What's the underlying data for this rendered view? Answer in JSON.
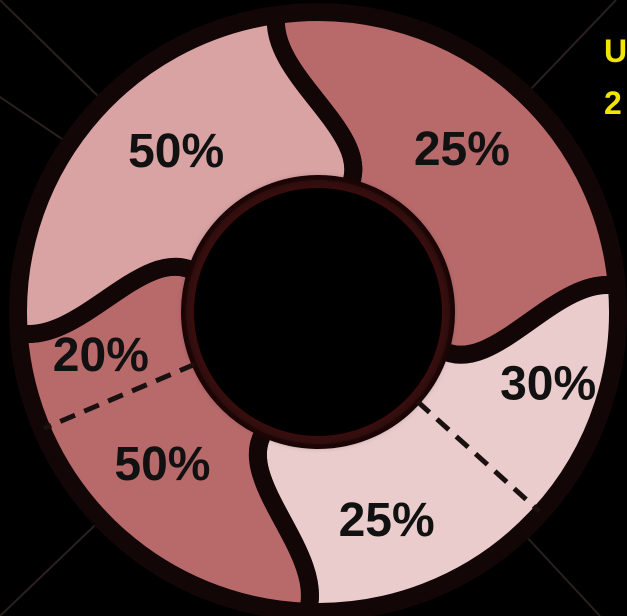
{
  "chart_data": {
    "type": "donut",
    "title": "",
    "segments": [
      {
        "name": "",
        "color": "#b86a6b",
        "parts": [
          {
            "label": "25%",
            "value": 25
          }
        ]
      },
      {
        "name": "",
        "color": "#eacccc",
        "parts": [
          {
            "label": "30%",
            "value": 30
          },
          {
            "label": "25%",
            "value": 25
          }
        ]
      },
      {
        "name": "",
        "color": "#b86a6b",
        "parts": [
          {
            "label": "50%",
            "value": 50
          },
          {
            "label": "20%",
            "value": 20
          }
        ]
      },
      {
        "name": "",
        "color": "#d9a3a4",
        "parts": [
          {
            "label": "50%",
            "value": 50
          }
        ]
      }
    ]
  },
  "side_text": {
    "line1": "U",
    "line2": "2",
    "color": "#f2e600"
  }
}
